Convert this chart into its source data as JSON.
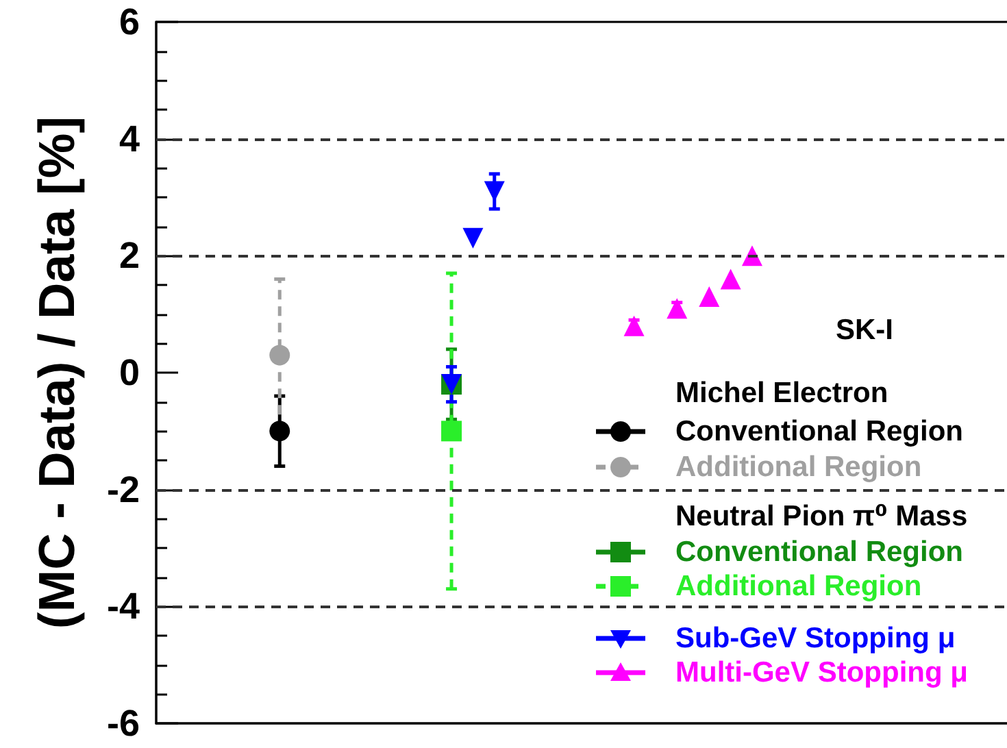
{
  "chart_data": {
    "type": "scatter",
    "ylabel": "(MC - Data) / Data [%]",
    "legend_title": "SK-I",
    "annotations": [
      "Michel Electron",
      "Neutral Pion π⁰ Mass"
    ],
    "categories": [
      null,
      null,
      null,
      null,
      null,
      null,
      null,
      null,
      null,
      null,
      null,
      null,
      null,
      null,
      null,
      null,
      null,
      null,
      null,
      null,
      null,
      null,
      null,
      null,
      null,
      null,
      null,
      null,
      null,
      null,
      null,
      null,
      null,
      null,
      null,
      null,
      null,
      null,
      null,
      null,
      null,
      null,
      null,
      null,
      null,
      null,
      null,
      null,
      null,
      null,
      null,
      null,
      null,
      null,
      null,
      null,
      null,
      null,
      null,
      null,
      null,
      null,
      null,
      null,
      null,
      null,
      null,
      null,
      null,
      null,
      null,
      null,
      null,
      null,
      null,
      null,
      null,
      null,
      null,
      null
    ],
    "ylim": [
      -6,
      6
    ],
    "yticks": [
      -6,
      -4,
      -2,
      0,
      2,
      4,
      6
    ],
    "tick_labels": "y",
    "legend": "bottom right",
    "ref_lines": [
      {
        "axis": "y",
        "value": 4,
        "color": "#333333",
        "line_style": "dashed"
      },
      {
        "axis": "y",
        "value": 2,
        "color": "#333333",
        "line_style": "dashed"
      },
      {
        "axis": "y",
        "value": -2,
        "color": "#333333",
        "line_style": "dashed"
      },
      {
        "axis": "y",
        "value": -4,
        "color": "#333333",
        "line_style": "dashed"
      }
    ],
    "series": [
      {
        "name": "Conventional Region",
        "color": "#000000",
        "marker": "circle",
        "line_style": "solid",
        "values": [
          null,
          null,
          null,
          null,
          null,
          null,
          null,
          null,
          null,
          null,
          null,
          -1,
          null,
          null,
          null,
          null,
          null,
          null,
          null,
          null,
          null,
          null,
          null,
          null,
          null,
          null,
          null,
          null,
          null,
          null,
          null,
          null,
          null,
          null,
          null,
          null,
          null,
          null,
          null,
          null,
          null,
          null,
          null,
          null,
          null,
          null,
          null,
          null,
          null,
          null,
          null,
          null,
          null,
          null,
          null,
          null,
          null,
          null,
          null,
          null,
          null,
          null,
          null,
          null,
          null,
          null,
          null,
          null,
          null,
          null,
          null,
          null,
          null,
          null,
          null,
          null,
          null,
          null,
          null,
          null
        ],
        "errors": [
          null,
          null,
          null,
          null,
          null,
          null,
          null,
          null,
          null,
          null,
          null,
          0.6,
          null,
          null,
          null,
          null,
          null,
          null,
          null,
          null,
          null,
          null,
          null,
          null,
          null,
          null,
          null,
          null,
          null,
          null,
          null,
          null,
          null,
          null,
          null,
          null,
          null,
          null,
          null,
          null,
          null,
          null,
          null,
          null,
          null,
          null,
          null,
          null,
          null,
          null,
          null,
          null,
          null,
          null,
          null,
          null,
          null,
          null,
          null,
          null,
          null,
          null,
          null,
          null,
          null,
          null,
          null,
          null,
          null,
          null,
          null,
          null,
          null,
          null,
          null,
          null,
          null,
          null,
          null,
          null
        ]
      },
      {
        "name": "Additional Region",
        "color": "#a0a0a0",
        "marker": "circle",
        "line_style": "dashed",
        "values": [
          null,
          null,
          null,
          null,
          null,
          null,
          null,
          null,
          null,
          null,
          null,
          0.3,
          null,
          null,
          null,
          null,
          null,
          null,
          null,
          null,
          null,
          null,
          null,
          null,
          null,
          null,
          null,
          null,
          null,
          null,
          null,
          null,
          null,
          null,
          null,
          null,
          null,
          null,
          null,
          null,
          null,
          null,
          null,
          null,
          null,
          null,
          null,
          null,
          null,
          null,
          null,
          null,
          null,
          null,
          null,
          null,
          null,
          null,
          null,
          null,
          null,
          null,
          null,
          null,
          null,
          null,
          null,
          null,
          null,
          null,
          null,
          null,
          null,
          null,
          null,
          null,
          null,
          null,
          null,
          null
        ],
        "errors": [
          null,
          null,
          null,
          null,
          null,
          null,
          null,
          null,
          null,
          null,
          null,
          1.3,
          null,
          null,
          null,
          null,
          null,
          null,
          null,
          null,
          null,
          null,
          null,
          null,
          null,
          null,
          null,
          null,
          null,
          null,
          null,
          null,
          null,
          null,
          null,
          null,
          null,
          null,
          null,
          null,
          null,
          null,
          null,
          null,
          null,
          null,
          null,
          null,
          null,
          null,
          null,
          null,
          null,
          null,
          null,
          null,
          null,
          null,
          null,
          null,
          null,
          null,
          null,
          null,
          null,
          null,
          null,
          null,
          null,
          null,
          null,
          null,
          null,
          null,
          null,
          null,
          null,
          null,
          null,
          null
        ]
      },
      {
        "name": "Conventional Region",
        "color": "#128c12",
        "marker": "square",
        "line_style": "solid",
        "values": [
          null,
          null,
          null,
          null,
          null,
          null,
          null,
          null,
          null,
          null,
          null,
          null,
          null,
          null,
          null,
          null,
          null,
          null,
          null,
          null,
          null,
          null,
          null,
          null,
          null,
          null,
          null,
          -0.2,
          null,
          null,
          null,
          null,
          null,
          null,
          null,
          null,
          null,
          null,
          null,
          null,
          null,
          null,
          null,
          null,
          null,
          null,
          null,
          null,
          null,
          null,
          null,
          null,
          null,
          null,
          null,
          null,
          null,
          null,
          null,
          null,
          null,
          null,
          null,
          null,
          null,
          null,
          null,
          null,
          null,
          null,
          null,
          null,
          null,
          null,
          null,
          null,
          null,
          null,
          null,
          null
        ],
        "errors": [
          null,
          null,
          null,
          null,
          null,
          null,
          null,
          null,
          null,
          null,
          null,
          null,
          null,
          null,
          null,
          null,
          null,
          null,
          null,
          null,
          null,
          null,
          null,
          null,
          null,
          null,
          null,
          0.6,
          null,
          null,
          null,
          null,
          null,
          null,
          null,
          null,
          null,
          null,
          null,
          null,
          null,
          null,
          null,
          null,
          null,
          null,
          null,
          null,
          null,
          null,
          null,
          null,
          null,
          null,
          null,
          null,
          null,
          null,
          null,
          null,
          null,
          null,
          null,
          null,
          null,
          null,
          null,
          null,
          null,
          null,
          null,
          null,
          null,
          null,
          null,
          null,
          null,
          null,
          null,
          null
        ]
      },
      {
        "name": "Additional Region",
        "color": "#2aee2a",
        "marker": "square",
        "line_style": "dashed",
        "values": [
          null,
          null,
          null,
          null,
          null,
          null,
          null,
          null,
          null,
          null,
          null,
          null,
          null,
          null,
          null,
          null,
          null,
          null,
          null,
          null,
          null,
          null,
          null,
          null,
          null,
          null,
          null,
          -1,
          null,
          null,
          null,
          null,
          null,
          null,
          null,
          null,
          null,
          null,
          null,
          null,
          null,
          null,
          null,
          null,
          null,
          null,
          null,
          null,
          null,
          null,
          null,
          null,
          null,
          null,
          null,
          null,
          null,
          null,
          null,
          null,
          null,
          null,
          null,
          null,
          null,
          null,
          null,
          null,
          null,
          null,
          null,
          null,
          null,
          null,
          null,
          null,
          null,
          null,
          null,
          null
        ],
        "errors": [
          null,
          null,
          null,
          null,
          null,
          null,
          null,
          null,
          null,
          null,
          null,
          null,
          null,
          null,
          null,
          null,
          null,
          null,
          null,
          null,
          null,
          null,
          null,
          null,
          null,
          null,
          null,
          2.7,
          null,
          null,
          null,
          null,
          null,
          null,
          null,
          null,
          null,
          null,
          null,
          null,
          null,
          null,
          null,
          null,
          null,
          null,
          null,
          null,
          null,
          null,
          null,
          null,
          null,
          null,
          null,
          null,
          null,
          null,
          null,
          null,
          null,
          null,
          null,
          null,
          null,
          null,
          null,
          null,
          null,
          null,
          null,
          null,
          null,
          null,
          null,
          null,
          null,
          null,
          null,
          null
        ]
      },
      {
        "name": "Sub-GeV Stopping μ",
        "color": "#0000ff",
        "marker": "triangle-down",
        "line_style": "solid",
        "values": [
          null,
          null,
          null,
          null,
          null,
          null,
          null,
          null,
          null,
          null,
          null,
          null,
          null,
          null,
          null,
          null,
          null,
          null,
          null,
          null,
          null,
          null,
          null,
          null,
          null,
          null,
          null,
          -0.2,
          null,
          2.3,
          null,
          3.1,
          null,
          null,
          null,
          null,
          null,
          null,
          null,
          null,
          null,
          null,
          null,
          null,
          null,
          null,
          null,
          null,
          null,
          null,
          null,
          null,
          null,
          null,
          null,
          null,
          null,
          null,
          null,
          null,
          null,
          null,
          null,
          null,
          null,
          null,
          null,
          null,
          null,
          null,
          null,
          null,
          null,
          null,
          null,
          null,
          null,
          null,
          null,
          null
        ],
        "errors": [
          null,
          null,
          null,
          null,
          null,
          null,
          null,
          null,
          null,
          null,
          null,
          null,
          null,
          null,
          null,
          null,
          null,
          null,
          null,
          null,
          null,
          null,
          null,
          null,
          null,
          null,
          null,
          0.3,
          null,
          null,
          null,
          0.3,
          null,
          null,
          null,
          null,
          null,
          null,
          null,
          null,
          null,
          null,
          null,
          null,
          null,
          null,
          null,
          null,
          null,
          null,
          null,
          null,
          null,
          null,
          null,
          null,
          null,
          null,
          null,
          null,
          null,
          null,
          null,
          null,
          null,
          null,
          null,
          null,
          null,
          null,
          null,
          null,
          null,
          null,
          null,
          null,
          null,
          null,
          null,
          null
        ]
      },
      {
        "name": "Multi-GeV Stopping μ",
        "color": "#ff00ff",
        "marker": "triangle",
        "line_style": "solid",
        "values": [
          null,
          null,
          null,
          null,
          null,
          null,
          null,
          null,
          null,
          null,
          null,
          null,
          null,
          null,
          null,
          null,
          null,
          null,
          null,
          null,
          null,
          null,
          null,
          null,
          null,
          null,
          null,
          null,
          null,
          null,
          null,
          null,
          null,
          null,
          null,
          null,
          null,
          null,
          null,
          null,
          null,
          null,
          null,
          null,
          0.8,
          null,
          null,
          null,
          1.1,
          null,
          null,
          1.3,
          null,
          1.6,
          null,
          2,
          null,
          null,
          null,
          null,
          null,
          null,
          null,
          null,
          null,
          null,
          null,
          null,
          null,
          null,
          null,
          null,
          null,
          null,
          null,
          null,
          null,
          null,
          null,
          null
        ],
        "errors": [
          null,
          null,
          null,
          null,
          null,
          null,
          null,
          null,
          null,
          null,
          null,
          null,
          null,
          null,
          null,
          null,
          null,
          null,
          null,
          null,
          null,
          null,
          null,
          null,
          null,
          null,
          null,
          null,
          null,
          null,
          null,
          null,
          null,
          null,
          null,
          null,
          null,
          null,
          null,
          null,
          null,
          null,
          null,
          null,
          0.1,
          null,
          null,
          null,
          0.1,
          null,
          null,
          null,
          null,
          null,
          null,
          null,
          null,
          null,
          null,
          null,
          null,
          null,
          null,
          null,
          null,
          null,
          null,
          null,
          null,
          null,
          null,
          null,
          null,
          null,
          null,
          null,
          null,
          null,
          null,
          null
        ]
      }
    ]
  }
}
